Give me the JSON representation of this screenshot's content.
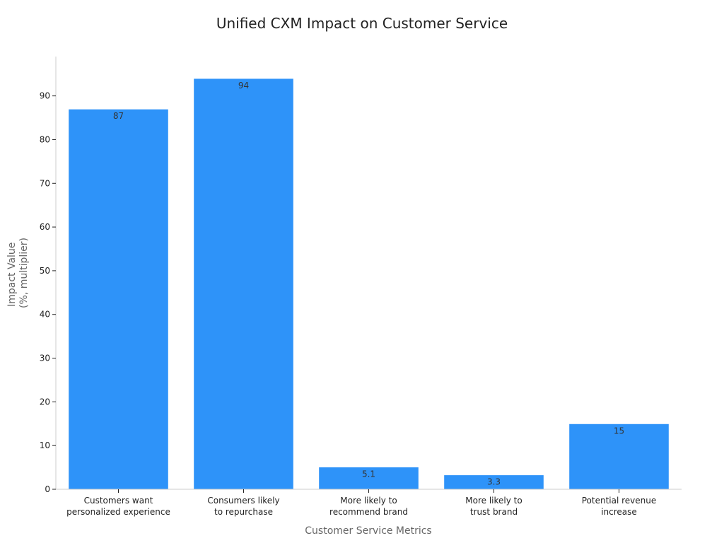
{
  "chart_data": {
    "type": "bar",
    "title": "Unified CXM Impact on Customer Service",
    "xlabel": "Customer Service Metrics",
    "ylabel": [
      "Impact Value",
      "(%, multiplier)"
    ],
    "categories": [
      [
        "Customers want",
        "personalized experience"
      ],
      [
        "Consumers likely",
        "to repurchase"
      ],
      [
        "More likely to",
        "recommend brand"
      ],
      [
        "More likely to",
        "trust brand"
      ],
      [
        "Potential revenue",
        "increase"
      ]
    ],
    "values": [
      87,
      94,
      5.1,
      3.3,
      15
    ],
    "value_labels": [
      "87",
      "94",
      "5.1",
      "3.3",
      "15"
    ],
    "ylim": [
      0,
      99
    ],
    "yticks": [
      0,
      10,
      20,
      30,
      40,
      50,
      60,
      70,
      80,
      90
    ],
    "grid": false,
    "legend": "none",
    "bar_color": "#2e93f9"
  }
}
